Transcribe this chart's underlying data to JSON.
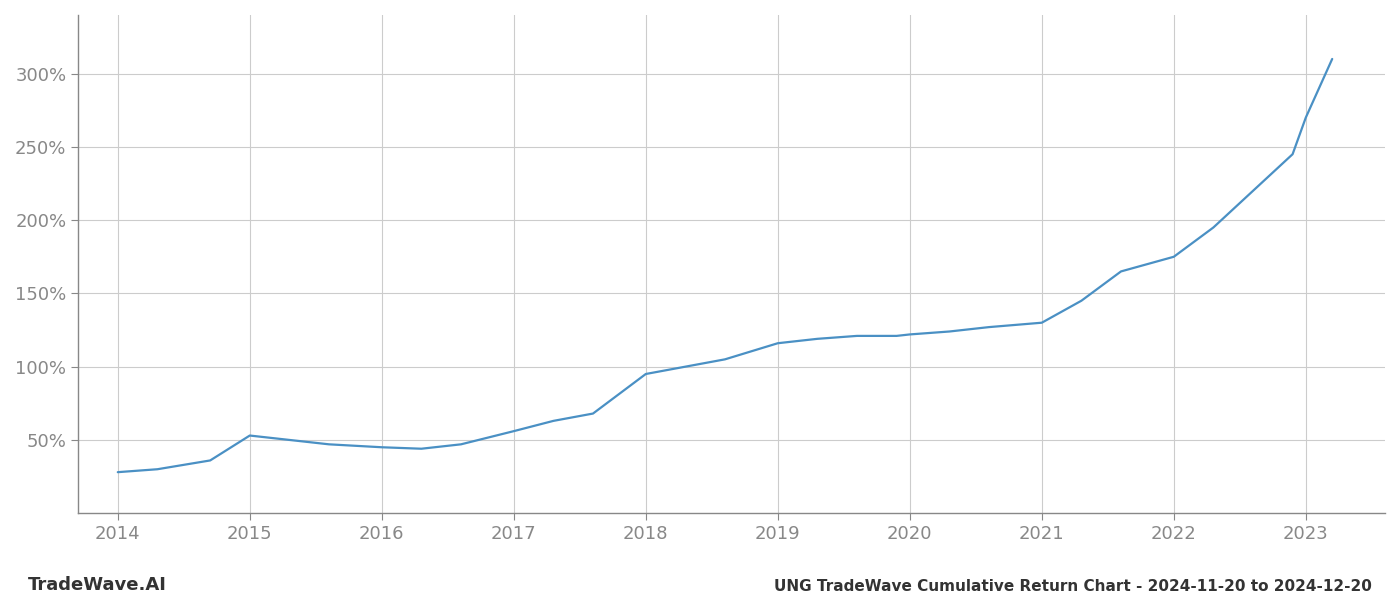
{
  "title": "UNG TradeWave Cumulative Return Chart - 2024-11-20 to 2024-12-20",
  "watermark": "TradeWave.AI",
  "x_values": [
    2014.0,
    2014.3,
    2014.7,
    2015.0,
    2015.3,
    2015.6,
    2016.0,
    2016.3,
    2016.6,
    2017.0,
    2017.3,
    2017.6,
    2018.0,
    2018.3,
    2018.6,
    2019.0,
    2019.3,
    2019.6,
    2019.9,
    2020.0,
    2020.3,
    2020.6,
    2021.0,
    2021.3,
    2021.6,
    2022.0,
    2022.3,
    2022.6,
    2022.9,
    2023.0,
    2023.2
  ],
  "y_values": [
    28,
    30,
    36,
    53,
    50,
    47,
    45,
    44,
    47,
    56,
    63,
    68,
    95,
    100,
    105,
    116,
    119,
    121,
    121,
    122,
    124,
    127,
    130,
    145,
    165,
    175,
    195,
    220,
    245,
    270,
    310
  ],
  "line_color": "#4a90c4",
  "background_color": "#ffffff",
  "grid_color": "#cccccc",
  "axis_color": "#888888",
  "text_color": "#555555",
  "watermark_color": "#333333",
  "title_color": "#333333",
  "xlim": [
    2013.7,
    2023.6
  ],
  "ylim": [
    0,
    340
  ],
  "yticks": [
    50,
    100,
    150,
    200,
    250,
    300
  ],
  "xticks": [
    2014,
    2015,
    2016,
    2017,
    2018,
    2019,
    2020,
    2021,
    2022,
    2023
  ],
  "line_width": 1.6,
  "title_fontsize": 11,
  "tick_fontsize": 13,
  "watermark_fontsize": 13
}
